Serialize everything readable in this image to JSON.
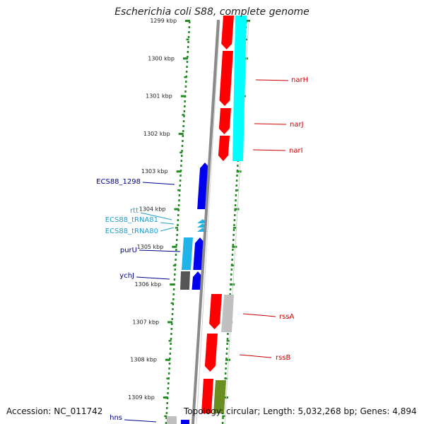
{
  "title": "Escherichia coli S88, complete genome",
  "footer": {
    "accession": "Accession: NC_011742",
    "topology": "Topology: circular; Length: 5,032,268 bp; Genes: 4,894"
  },
  "ruler": {
    "labels": [
      "1299 kbp",
      "1300 kbp",
      "1301 kbp",
      "1302 kbp",
      "1303 kbp",
      "1304 kbp",
      "1305 kbp",
      "1306 kbp",
      "1307 kbp",
      "1308 kbp",
      "1309 kbp"
    ]
  },
  "colors": {
    "red": "#ff0000",
    "cyan": "#00ffff",
    "blue": "#0000ee",
    "light_blue": "#1fb3e8",
    "gray": "#555555",
    "light_gray": "#c0c0c0",
    "olive": "#6b8e23",
    "ruler_green": "#228b22",
    "label_red": "#cc0000",
    "label_blue": "#00008b",
    "label_light_blue": "#1ea0d0"
  },
  "features": [
    {
      "name": "narH",
      "color": "red",
      "label_color": "label_red",
      "side": "right",
      "icon": "gene-arrow"
    },
    {
      "name": "narJ",
      "color": "red",
      "label_color": "label_red",
      "side": "right",
      "icon": "gene-arrow"
    },
    {
      "name": "narI",
      "color": "red",
      "label_color": "label_red",
      "side": "right",
      "icon": "gene-arrow"
    },
    {
      "name": "ECS88_1298",
      "color": "blue",
      "label_color": "label_blue",
      "side": "left",
      "icon": "gene-arrow"
    },
    {
      "name": "rtt",
      "color": "light_blue",
      "label_color": "label_light_blue",
      "side": "left",
      "icon": "trna-arrow"
    },
    {
      "name": "ECS88_tRNA81",
      "color": "light_blue",
      "label_color": "label_light_blue",
      "side": "left",
      "icon": "trna-arrow"
    },
    {
      "name": "ECS88_tRNA80",
      "color": "light_blue",
      "label_color": "label_light_blue",
      "side": "left",
      "icon": "trna-arrow"
    },
    {
      "name": "purU",
      "color": "light_blue",
      "label_color": "label_blue",
      "side": "left",
      "icon": "gene-arrow"
    },
    {
      "name": "ychJ",
      "color": "gray",
      "label_color": "label_blue",
      "side": "left",
      "icon": "gene-arrow"
    },
    {
      "name": "rssA",
      "color": "red",
      "label_color": "label_red",
      "side": "right",
      "icon": "gene-arrow"
    },
    {
      "name": "rssB",
      "color": "red",
      "label_color": "label_red",
      "side": "right",
      "icon": "gene-arrow"
    },
    {
      "name": "hns",
      "color": "light_gray",
      "label_color": "label_blue",
      "side": "left",
      "icon": "gene-arrow"
    }
  ]
}
